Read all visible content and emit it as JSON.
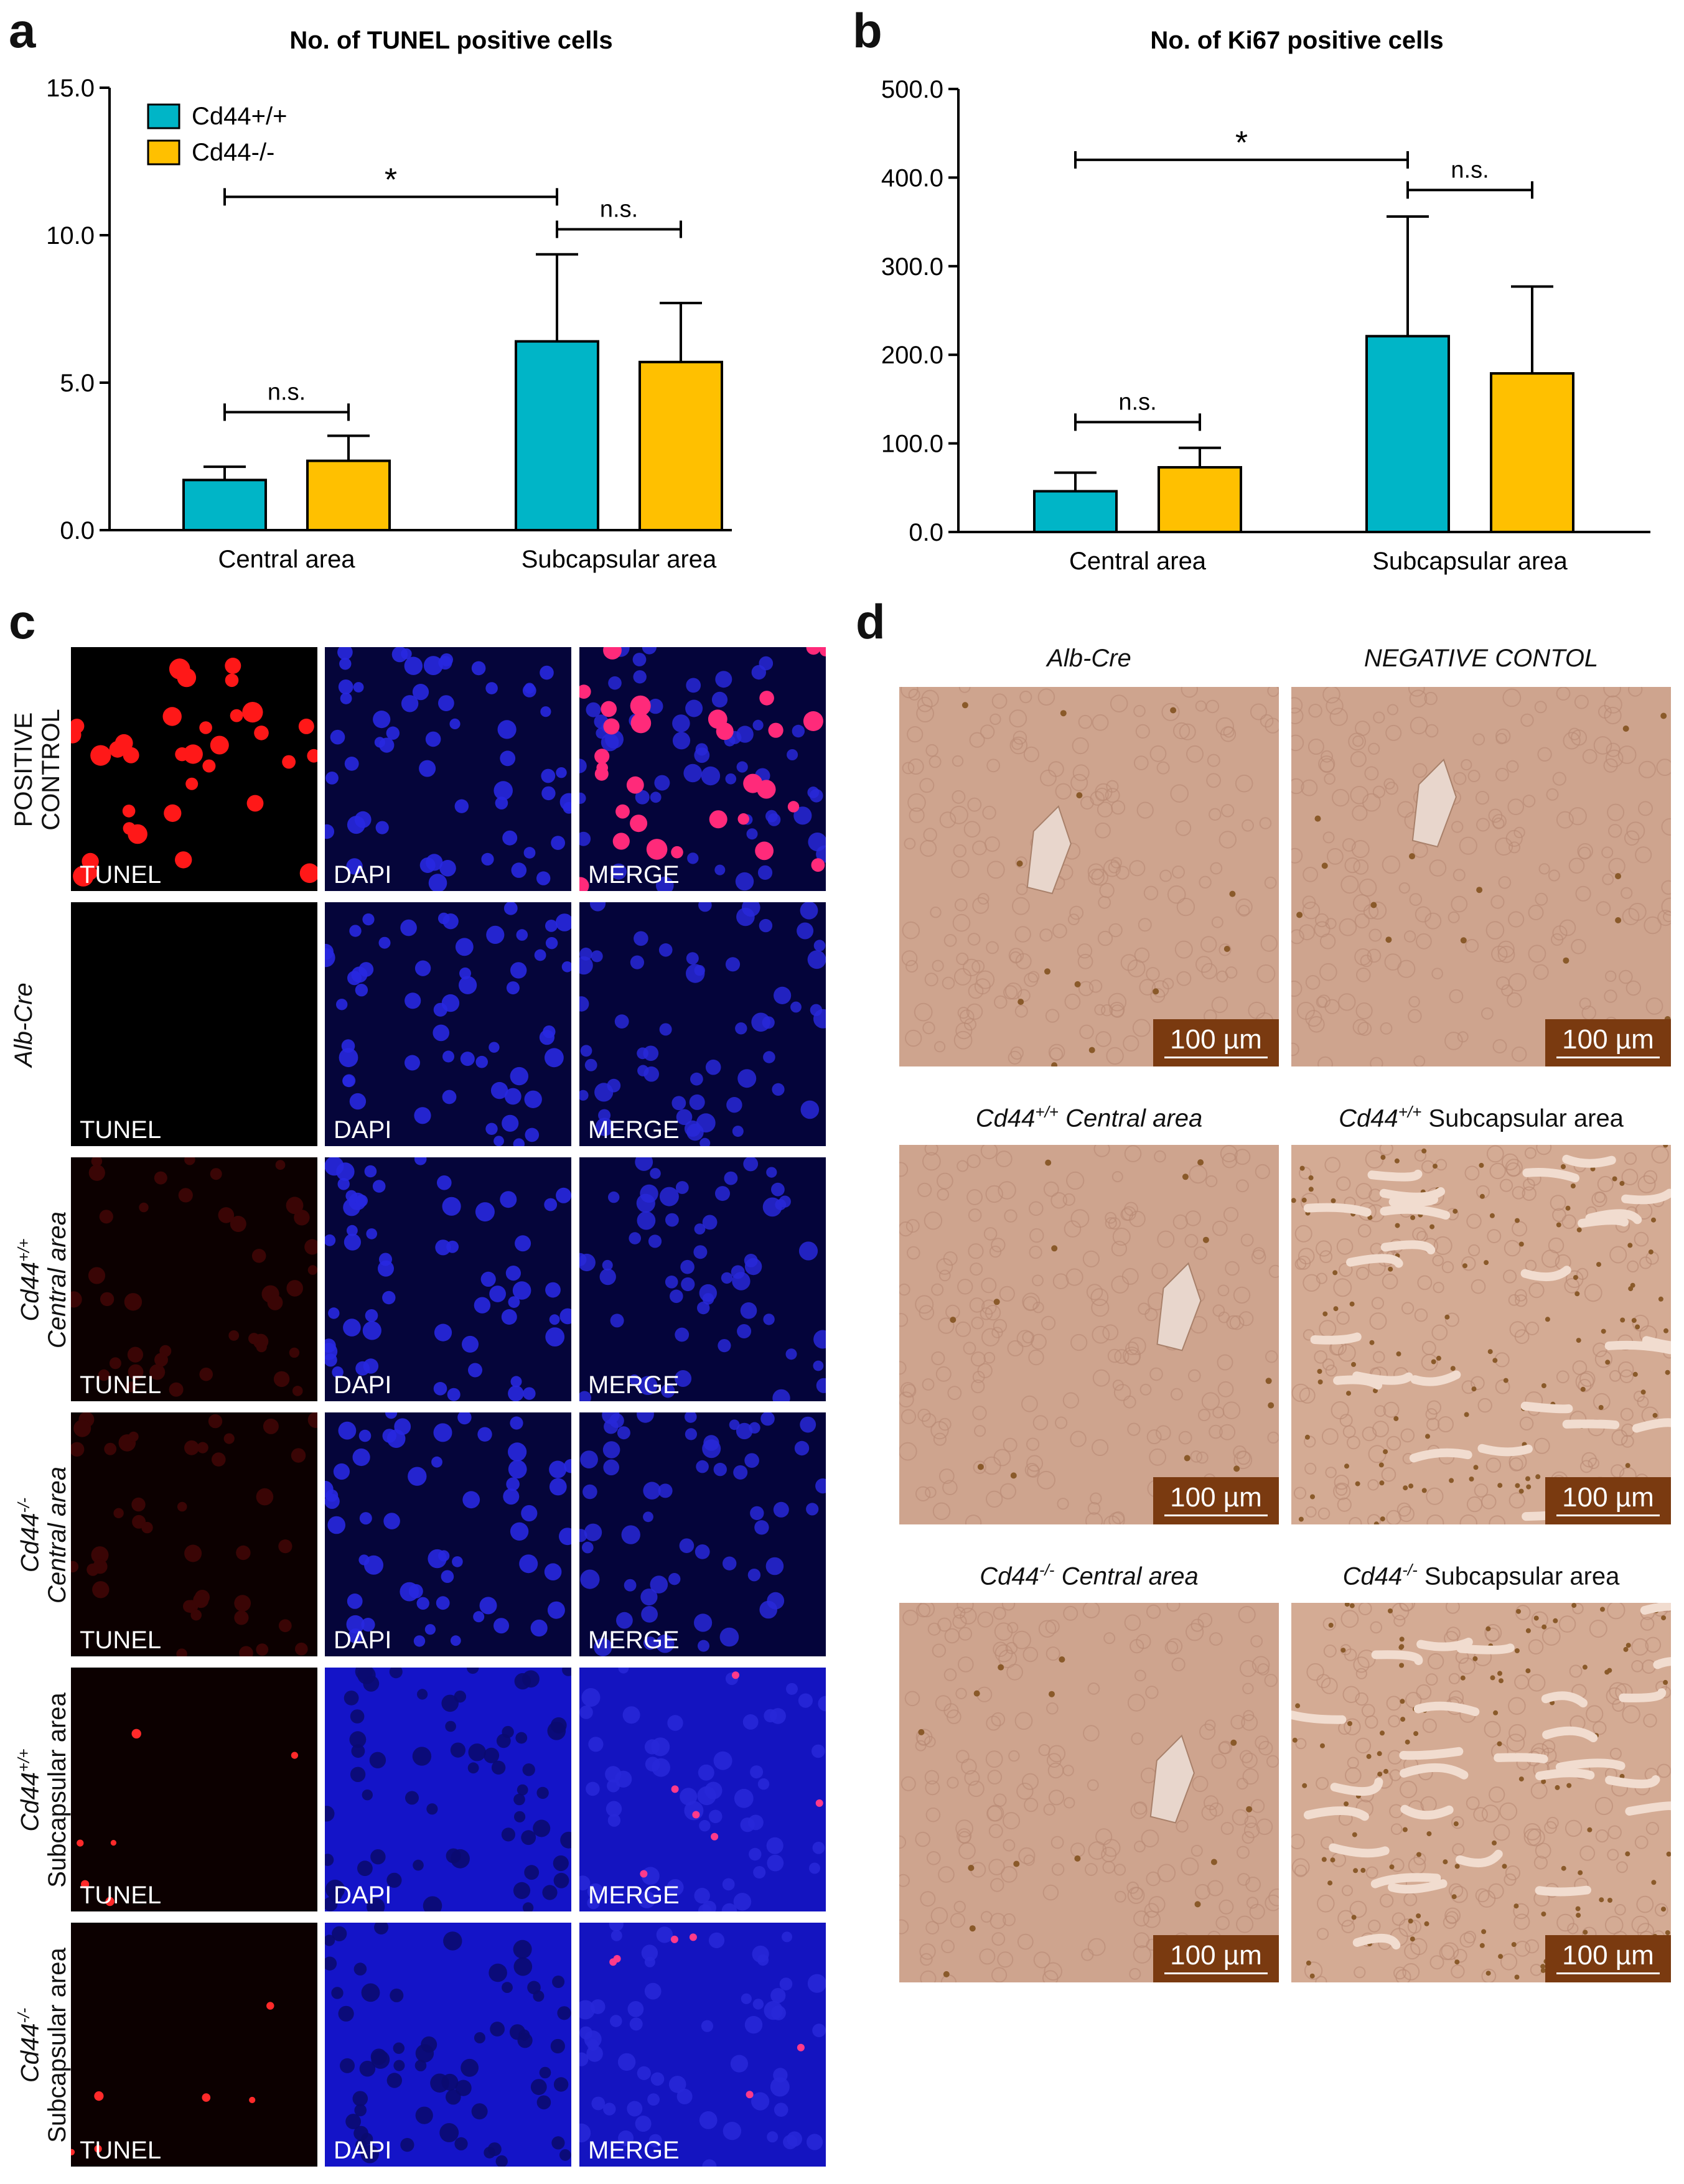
{
  "chart_data": [
    {
      "type": "bar",
      "panel": "a",
      "title": "No. of TUNEL positive cells",
      "categories": [
        "Central area",
        "Subcapsular area"
      ],
      "series": [
        {
          "name": "Cd44+/+",
          "color": "#00b5c7",
          "values": [
            1.7,
            6.4
          ],
          "errors": [
            0.45,
            2.95
          ]
        },
        {
          "name": "Cd44-/-",
          "color": "#ffc000",
          "values": [
            2.35,
            5.7
          ],
          "errors": [
            0.85,
            2.0
          ]
        }
      ],
      "ylim": [
        0,
        15
      ],
      "yticks": [
        "0.0",
        "5.0",
        "10.0",
        "15.0"
      ],
      "legend": "top-left",
      "annotations": [
        {
          "text": "n.s.",
          "from": "Central area:Cd44+/+",
          "to": "Central area:Cd44-/-",
          "y": 4.0
        },
        {
          "text": "*",
          "from": "Central area:Cd44+/+",
          "to": "Subcapsular area:Cd44+/+",
          "y": 11.3
        },
        {
          "text": "n.s.",
          "from": "Subcapsular area:Cd44+/+",
          "to": "Subcapsular area:Cd44-/-",
          "y": 10.2
        }
      ]
    },
    {
      "type": "bar",
      "panel": "b",
      "title": "No. of Ki67 positive cells",
      "categories": [
        "Central area",
        "Subcapsular area"
      ],
      "series": [
        {
          "name": "Cd44+/+",
          "color": "#00b5c7",
          "values": [
            46,
            221
          ],
          "errors": [
            21,
            135
          ]
        },
        {
          "name": "Cd44-/-",
          "color": "#ffc000",
          "values": [
            73,
            179
          ],
          "errors": [
            22,
            98
          ]
        }
      ],
      "ylim": [
        0,
        500
      ],
      "yticks": [
        "0.0",
        "100.0",
        "200.0",
        "300.0",
        "400.0",
        "500.0"
      ],
      "annotations": [
        {
          "text": "n.s.",
          "from": "Central area:Cd44+/+",
          "to": "Central area:Cd44-/-",
          "y": 124
        },
        {
          "text": "*",
          "from": "Central area:Cd44+/+",
          "to": "Subcapsular area:Cd44+/+",
          "y": 420
        },
        {
          "text": "n.s.",
          "from": "Subcapsular area:Cd44+/+",
          "to": "Subcapsular area:Cd44-/-",
          "y": 386
        }
      ]
    }
  ],
  "panels": {
    "a": "a",
    "b": "b",
    "c": "c",
    "d": "d"
  },
  "panel_c": {
    "channels": [
      "TUNEL",
      "DAPI",
      "MERGE"
    ],
    "rows": [
      {
        "line1": "POSITIVE",
        "line2": "CONTROL",
        "style": "plain",
        "bright": "high"
      },
      {
        "line1": "Alb-Cre",
        "style": "italic",
        "bright": "none"
      },
      {
        "gene": "Cd44",
        "sup": "+/+",
        "area": "Central area",
        "area_style": "italic",
        "bright": "faint"
      },
      {
        "gene": "Cd44",
        "sup": "-/-",
        "area": "Central area",
        "area_style": "italic",
        "bright": "faint"
      },
      {
        "gene": "Cd44",
        "sup": "+/+",
        "area": "Subcapsular area",
        "area_style": "plain",
        "bright": "sparse"
      },
      {
        "gene": "Cd44",
        "sup": "-/-",
        "area": "Subcapsular area",
        "area_style": "plain",
        "bright": "sparse"
      }
    ]
  },
  "panel_d": {
    "scale_label": "100 µm",
    "titles": [
      {
        "gene": "",
        "sup": "",
        "area": "Alb-Cre",
        "area_style": "italic"
      },
      {
        "gene": "",
        "sup": "",
        "area": "NEGATIVE CONTOL",
        "area_style": "italic"
      },
      {
        "gene": "Cd44",
        "sup": "+/+",
        "area": " Central area",
        "area_style": "italic"
      },
      {
        "gene": "Cd44",
        "sup": "+/+",
        "area": " Subcapsular area",
        "area_style": "plain"
      },
      {
        "gene": "Cd44",
        "sup": "-/-",
        "area": " Central area",
        "area_style": "italic"
      },
      {
        "gene": "Cd44",
        "sup": "-/-",
        "area": " Subcapsular area",
        "area_style": "plain"
      }
    ]
  },
  "colors": {
    "cd44_wt": "#00b5c7",
    "cd44_ko": "#ffc000",
    "scalebar": "#7a3a10",
    "tissue": "#cfa38c",
    "dapi": "#1a1ad0",
    "tunel": "#ff2020"
  }
}
